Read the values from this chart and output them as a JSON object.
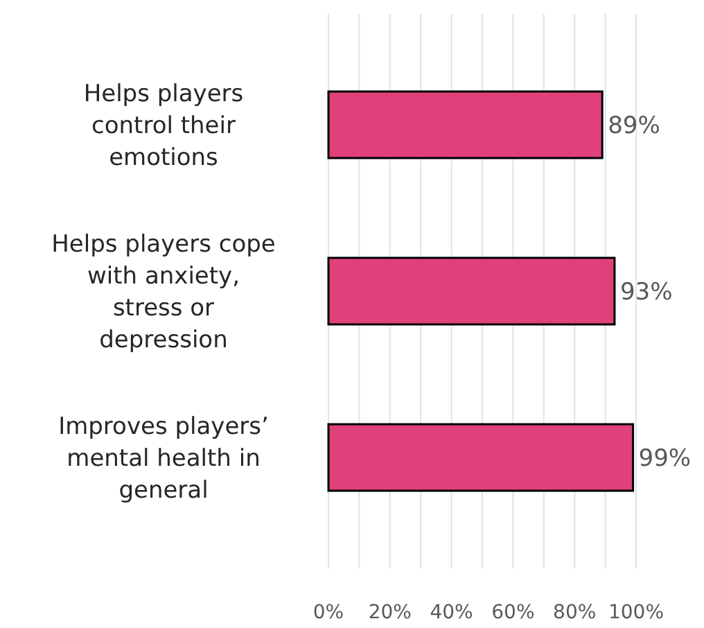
{
  "chart_data": {
    "type": "bar",
    "orientation": "horizontal",
    "categories": [
      "Helps players control their emotions",
      "Helps players cope with anxiety, stress or depression",
      "Improves players’ mental health in general"
    ],
    "values": [
      89,
      93,
      99
    ],
    "color": "#e0417b",
    "value_labels": [
      "89%",
      "93%",
      "99%"
    ],
    "xlim": [
      0,
      100
    ],
    "xticks": [
      {
        "value": 0,
        "label": "0%"
      },
      {
        "value": 10,
        "label": null
      },
      {
        "value": 20,
        "label": "20%"
      },
      {
        "value": 30,
        "label": null
      },
      {
        "value": 40,
        "label": "40%"
      },
      {
        "value": 50,
        "label": null
      },
      {
        "value": 60,
        "label": "60%"
      },
      {
        "value": 70,
        "label": null
      },
      {
        "value": 80,
        "label": "80%"
      },
      {
        "value": 90,
        "label": null
      },
      {
        "value": 100,
        "label": "100%"
      }
    ],
    "grid": "x"
  }
}
